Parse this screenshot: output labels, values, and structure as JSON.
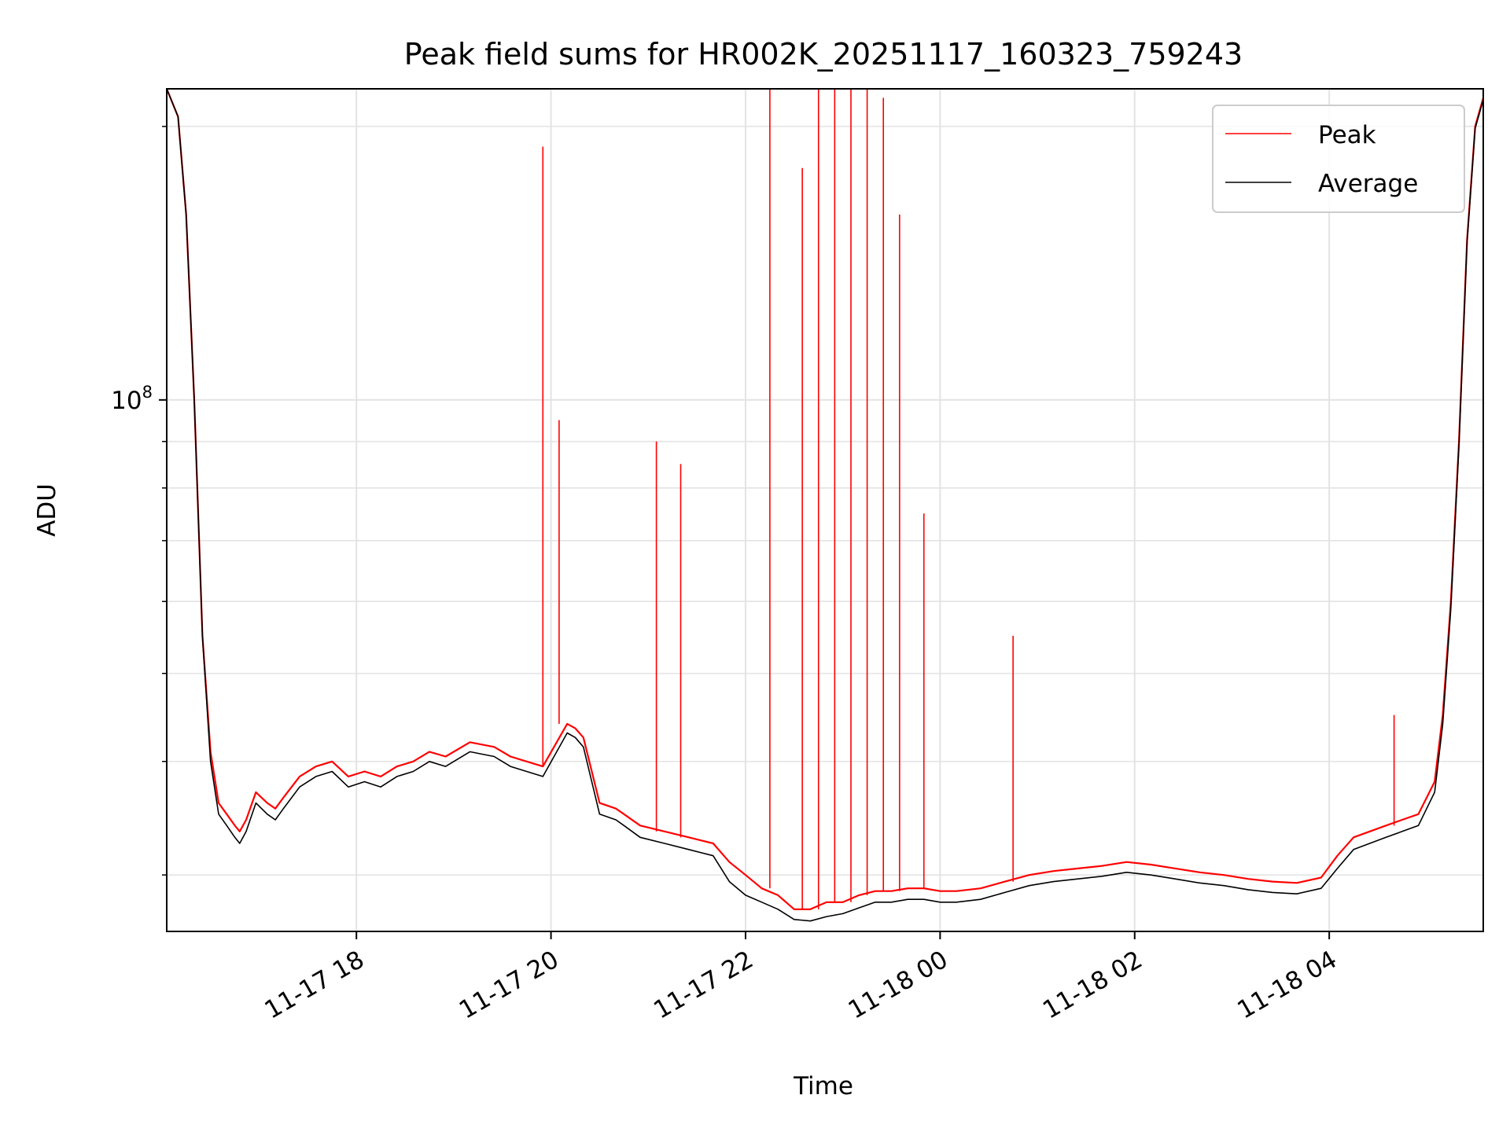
{
  "chart_data": {
    "type": "line",
    "title": "Peak field sums for HR002K_20251117_160323_759243",
    "xlabel": "Time",
    "ylabel": "ADU",
    "yscale": "log",
    "ylim": [
      26000000,
      220000000
    ],
    "xlim": [
      "2025-11-17 16:03",
      "2025-11-18 05:35"
    ],
    "grid": true,
    "legend_position": "top-right",
    "y_tick_labels": [
      {
        "value": 100000000,
        "base": "10",
        "exponent": "8"
      }
    ],
    "x_tick_labels": [
      {
        "time": "2025-11-17 18:00",
        "label": "11-17 18"
      },
      {
        "time": "2025-11-17 20:00",
        "label": "11-17 20"
      },
      {
        "time": "2025-11-17 22:00",
        "label": "11-17 22"
      },
      {
        "time": "2025-11-18 00:00",
        "label": "11-18 00"
      },
      {
        "time": "2025-11-18 02:00",
        "label": "11-18 02"
      },
      {
        "time": "2025-11-18 04:00",
        "label": "11-18 04"
      }
    ],
    "series": [
      {
        "name": "Peak",
        "color": "#ff0000",
        "x": [
          "2025-11-17 16:03",
          "2025-11-17 16:10",
          "2025-11-17 16:15",
          "2025-11-17 16:20",
          "2025-11-17 16:25",
          "2025-11-17 16:30",
          "2025-11-17 16:35",
          "2025-11-17 16:40",
          "2025-11-17 16:45",
          "2025-11-17 16:48",
          "2025-11-17 16:52",
          "2025-11-17 16:58",
          "2025-11-17 17:05",
          "2025-11-17 17:10",
          "2025-11-17 17:15",
          "2025-11-17 17:25",
          "2025-11-17 17:35",
          "2025-11-17 17:45",
          "2025-11-17 17:55",
          "2025-11-17 18:05",
          "2025-11-17 18:15",
          "2025-11-17 18:25",
          "2025-11-17 18:35",
          "2025-11-17 18:45",
          "2025-11-17 18:55",
          "2025-11-17 19:10",
          "2025-11-17 19:25",
          "2025-11-17 19:35",
          "2025-11-17 19:45",
          "2025-11-17 19:55",
          "2025-11-17 20:10",
          "2025-11-17 20:15",
          "2025-11-17 20:20",
          "2025-11-17 20:30",
          "2025-11-17 20:40",
          "2025-11-17 20:45",
          "2025-11-17 20:55",
          "2025-11-17 21:10",
          "2025-11-17 21:25",
          "2025-11-17 21:40",
          "2025-11-17 21:50",
          "2025-11-17 22:00",
          "2025-11-17 22:10",
          "2025-11-17 22:20",
          "2025-11-17 22:30",
          "2025-11-17 22:40",
          "2025-11-17 22:50",
          "2025-11-17 23:00",
          "2025-11-17 23:10",
          "2025-11-17 23:20",
          "2025-11-17 23:30",
          "2025-11-17 23:40",
          "2025-11-17 23:50",
          "2025-11-18 00:00",
          "2025-11-18 00:10",
          "2025-11-18 00:25",
          "2025-11-18 00:40",
          "2025-11-18 00:55",
          "2025-11-18 01:10",
          "2025-11-18 01:25",
          "2025-11-18 01:40",
          "2025-11-18 01:55",
          "2025-11-18 02:10",
          "2025-11-18 02:25",
          "2025-11-18 02:40",
          "2025-11-18 02:55",
          "2025-11-18 03:10",
          "2025-11-18 03:25",
          "2025-11-18 03:40",
          "2025-11-18 03:55",
          "2025-11-18 04:05",
          "2025-11-18 04:15",
          "2025-11-18 04:25",
          "2025-11-18 04:35",
          "2025-11-18 04:45",
          "2025-11-18 04:55",
          "2025-11-18 05:05",
          "2025-11-18 05:10",
          "2025-11-18 05:15",
          "2025-11-18 05:20",
          "2025-11-18 05:25",
          "2025-11-18 05:30",
          "2025-11-18 05:35"
        ],
        "y": [
          220000000,
          205000000,
          160000000,
          100000000,
          55000000,
          41000000,
          36000000,
          35000000,
          34000000,
          33500000,
          34500000,
          37000000,
          36000000,
          35500000,
          36500000,
          38500000,
          39500000,
          40000000,
          38500000,
          39000000,
          38500000,
          39500000,
          40000000,
          41000000,
          40500000,
          42000000,
          41500000,
          40500000,
          40000000,
          39500000,
          44000000,
          43500000,
          42500000,
          36000000,
          35500000,
          35000000,
          34000000,
          33500000,
          33000000,
          32500000,
          31000000,
          30000000,
          29000000,
          28500000,
          27500000,
          27500000,
          28000000,
          28000000,
          28500000,
          28800000,
          28800000,
          29000000,
          29000000,
          28800000,
          28800000,
          29000000,
          29500000,
          30000000,
          30300000,
          30500000,
          30700000,
          31000000,
          30800000,
          30500000,
          30200000,
          30000000,
          29700000,
          29500000,
          29400000,
          29800000,
          31500000,
          33000000,
          33500000,
          34000000,
          34500000,
          35000000,
          38000000,
          45000000,
          60000000,
          90000000,
          150000000,
          200000000,
          215000000
        ]
      },
      {
        "name": "Average",
        "color": "#000000",
        "x": [
          "2025-11-17 16:03",
          "2025-11-17 16:10",
          "2025-11-17 16:15",
          "2025-11-17 16:20",
          "2025-11-17 16:25",
          "2025-11-17 16:30",
          "2025-11-17 16:35",
          "2025-11-17 16:40",
          "2025-11-17 16:45",
          "2025-11-17 16:48",
          "2025-11-17 16:52",
          "2025-11-17 16:58",
          "2025-11-17 17:05",
          "2025-11-17 17:10",
          "2025-11-17 17:15",
          "2025-11-17 17:25",
          "2025-11-17 17:35",
          "2025-11-17 17:45",
          "2025-11-17 17:55",
          "2025-11-17 18:05",
          "2025-11-17 18:15",
          "2025-11-17 18:25",
          "2025-11-17 18:35",
          "2025-11-17 18:45",
          "2025-11-17 18:55",
          "2025-11-17 19:10",
          "2025-11-17 19:25",
          "2025-11-17 19:35",
          "2025-11-17 19:45",
          "2025-11-17 19:55",
          "2025-11-17 20:10",
          "2025-11-17 20:15",
          "2025-11-17 20:20",
          "2025-11-17 20:30",
          "2025-11-17 20:40",
          "2025-11-17 20:45",
          "2025-11-17 20:55",
          "2025-11-17 21:10",
          "2025-11-17 21:25",
          "2025-11-17 21:40",
          "2025-11-17 21:50",
          "2025-11-17 22:00",
          "2025-11-17 22:10",
          "2025-11-17 22:20",
          "2025-11-17 22:30",
          "2025-11-17 22:40",
          "2025-11-17 22:50",
          "2025-11-17 23:00",
          "2025-11-17 23:10",
          "2025-11-17 23:20",
          "2025-11-17 23:30",
          "2025-11-17 23:40",
          "2025-11-17 23:50",
          "2025-11-18 00:00",
          "2025-11-18 00:10",
          "2025-11-18 00:25",
          "2025-11-18 00:40",
          "2025-11-18 00:55",
          "2025-11-18 01:10",
          "2025-11-18 01:25",
          "2025-11-18 01:40",
          "2025-11-18 01:55",
          "2025-11-18 02:10",
          "2025-11-18 02:25",
          "2025-11-18 02:40",
          "2025-11-18 02:55",
          "2025-11-18 03:10",
          "2025-11-18 03:25",
          "2025-11-18 03:40",
          "2025-11-18 03:55",
          "2025-11-18 04:05",
          "2025-11-18 04:15",
          "2025-11-18 04:25",
          "2025-11-18 04:35",
          "2025-11-18 04:45",
          "2025-11-18 04:55",
          "2025-11-18 05:05",
          "2025-11-18 05:10",
          "2025-11-18 05:15",
          "2025-11-18 05:20",
          "2025-11-18 05:25",
          "2025-11-18 05:30",
          "2025-11-18 05:35"
        ],
        "y": [
          220000000,
          205000000,
          160000000,
          100000000,
          55000000,
          40000000,
          35000000,
          34000000,
          33000000,
          32500000,
          33500000,
          36000000,
          35000000,
          34500000,
          35500000,
          37500000,
          38500000,
          39000000,
          37500000,
          38000000,
          37500000,
          38500000,
          39000000,
          40000000,
          39500000,
          41000000,
          40500000,
          39500000,
          39000000,
          38500000,
          43000000,
          42500000,
          41500000,
          35000000,
          34500000,
          34000000,
          33000000,
          32500000,
          32000000,
          31500000,
          29500000,
          28500000,
          28000000,
          27500000,
          26800000,
          26700000,
          27000000,
          27200000,
          27600000,
          28000000,
          28000000,
          28200000,
          28200000,
          28000000,
          28000000,
          28200000,
          28700000,
          29200000,
          29500000,
          29700000,
          29900000,
          30200000,
          30000000,
          29700000,
          29400000,
          29200000,
          28900000,
          28700000,
          28600000,
          29000000,
          30500000,
          32000000,
          32500000,
          33000000,
          33500000,
          34000000,
          37000000,
          44000000,
          59000000,
          89000000,
          149000000,
          199000000,
          214000000
        ]
      }
    ],
    "peak_spikes": [
      {
        "x": "2025-11-17 19:55",
        "y": 190000000
      },
      {
        "x": "2025-11-17 20:05",
        "y": 95000000
      },
      {
        "x": "2025-11-17 21:05",
        "y": 90000000
      },
      {
        "x": "2025-11-17 21:20",
        "y": 85000000
      },
      {
        "x": "2025-11-17 22:15",
        "y": 220000000
      },
      {
        "x": "2025-11-17 22:35",
        "y": 180000000
      },
      {
        "x": "2025-11-17 22:45",
        "y": 220000000
      },
      {
        "x": "2025-11-17 22:55",
        "y": 220000000
      },
      {
        "x": "2025-11-17 23:05",
        "y": 220000000
      },
      {
        "x": "2025-11-17 23:15",
        "y": 220000000
      },
      {
        "x": "2025-11-17 23:25",
        "y": 215000000
      },
      {
        "x": "2025-11-17 23:35",
        "y": 160000000
      },
      {
        "x": "2025-11-17 23:50",
        "y": 75000000
      },
      {
        "x": "2025-11-18 00:45",
        "y": 55000000
      },
      {
        "x": "2025-11-18 04:40",
        "y": 45000000
      }
    ]
  }
}
